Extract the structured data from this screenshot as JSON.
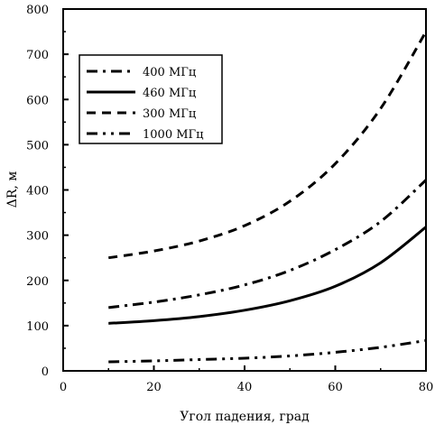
{
  "chart_data": {
    "type": "line",
    "xlabel": "Угол падения, град",
    "ylabel": "ΔR, м",
    "xlim": [
      0,
      80
    ],
    "ylim": [
      0,
      800
    ],
    "xticks": [
      0,
      20,
      40,
      60,
      80
    ],
    "yticks": [
      0,
      100,
      200,
      300,
      400,
      500,
      600,
      700,
      800
    ],
    "grid": false,
    "legend_position": "top-left",
    "series": [
      {
        "name": "400 МГц",
        "style": "dash-dot",
        "x": [
          10,
          20,
          30,
          40,
          50,
          60,
          70,
          80
        ],
        "y": [
          140,
          152,
          168,
          190,
          222,
          268,
          330,
          422
        ]
      },
      {
        "name": "460 МГц",
        "style": "solid",
        "x": [
          10,
          20,
          30,
          40,
          50,
          60,
          70,
          80
        ],
        "y": [
          105,
          111,
          120,
          134,
          155,
          187,
          239,
          318
        ]
      },
      {
        "name": "300 МГц",
        "style": "dashed",
        "x": [
          10,
          20,
          30,
          40,
          50,
          60,
          70,
          80
        ],
        "y": [
          250,
          265,
          287,
          321,
          375,
          458,
          580,
          750
        ]
      },
      {
        "name": "1000 МГц",
        "style": "dash-dot-dot",
        "x": [
          10,
          20,
          30,
          40,
          50,
          60,
          70,
          80
        ],
        "y": [
          20,
          22,
          25,
          28,
          33,
          41,
          52,
          67
        ]
      }
    ]
  }
}
